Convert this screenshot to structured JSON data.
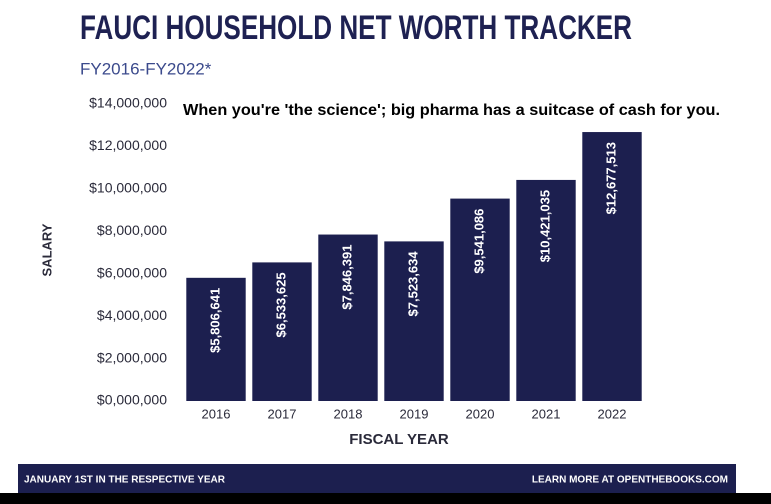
{
  "chart_data": {
    "type": "bar",
    "title": "FAUCI HOUSEHOLD NET WORTH TRACKER",
    "subtitle": "FY2016-FY2022*",
    "annotation": "When you're 'the science'; big pharma has a suitcase of cash for you.",
    "x_label": "FISCAL YEAR",
    "y_label": "SALARY",
    "footer_left": "JANUARY 1ST IN THE RESPECTIVE YEAR",
    "footer_right": "LEARN MORE AT OPENTHEBOOKS.COM",
    "categories": [
      "2016",
      "2017",
      "2018",
      "2019",
      "2020",
      "2021",
      "2022"
    ],
    "values": [
      5806641,
      6533625,
      7846391,
      7523634,
      9541086,
      10421035,
      12677513
    ],
    "value_labels": [
      "$5,806,641",
      "$6,533,625",
      "$7,846,391",
      "$7,523,634",
      "$9,541,086",
      "$10,421,035",
      "$12,677,513"
    ],
    "color": "#1c1f4f",
    "ylim": [
      0,
      14000000
    ],
    "yticks": [
      {
        "value": 0,
        "label": "$0,000,000"
      },
      {
        "value": 2000000,
        "label": "$2,000,000"
      },
      {
        "value": 4000000,
        "label": "$4,000,000"
      },
      {
        "value": 6000000,
        "label": "$6,000,000"
      },
      {
        "value": 8000000,
        "label": "$8,000,000"
      },
      {
        "value": 10000000,
        "label": "$10,000,000"
      },
      {
        "value": 12000000,
        "label": "$12,000,000"
      },
      {
        "value": 14000000,
        "label": "$14,000,000"
      }
    ],
    "grid": false
  }
}
